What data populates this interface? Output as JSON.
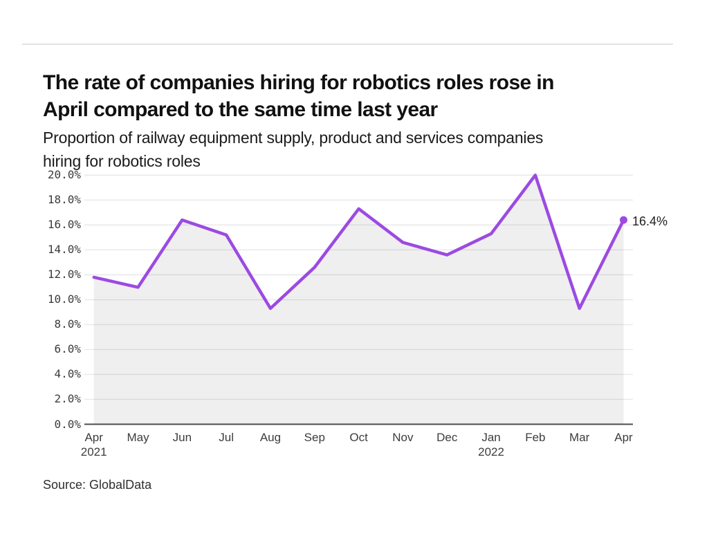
{
  "source": {
    "text": "Source: GlobalData"
  },
  "chart_data": {
    "type": "area",
    "title": "The rate of companies hiring for robotics roles rose in\nApril compared to the same time last year",
    "subtitle": "Proportion of railway equipment supply, product and services companies\nhiring for robotics roles",
    "categories": [
      "Apr",
      "May",
      "Jun",
      "Jul",
      "Aug",
      "Sep",
      "Oct",
      "Nov",
      "Dec",
      "Jan",
      "Feb",
      "Mar",
      "Apr"
    ],
    "year_labels": [
      {
        "index": 0,
        "text": "2021"
      },
      {
        "index": 9,
        "text": "2022"
      }
    ],
    "values": [
      11.8,
      11.0,
      16.4,
      15.2,
      9.3,
      12.6,
      17.3,
      14.6,
      13.6,
      15.3,
      20.0,
      9.3,
      16.4
    ],
    "end_label": "16.4%",
    "xlabel": "",
    "ylabel": "",
    "ylim": [
      0,
      20
    ],
    "y_tick_step": 2,
    "y_tick_labels": [
      "0.0%",
      "2.0%",
      "4.0%",
      "6.0%",
      "8.0%",
      "10.0%",
      "12.0%",
      "14.0%",
      "16.0%",
      "18.0%",
      "20.0%"
    ],
    "grid": true,
    "legend": false,
    "marker_on_last_point_only": true,
    "colors": {
      "line": "#9c4ae2",
      "area_fill": "#efefef",
      "gridline": "#e8e8e8",
      "axis_line": "#4d4d4d",
      "tick_text": "#3c3c3c",
      "title_text": "#111111"
    }
  }
}
